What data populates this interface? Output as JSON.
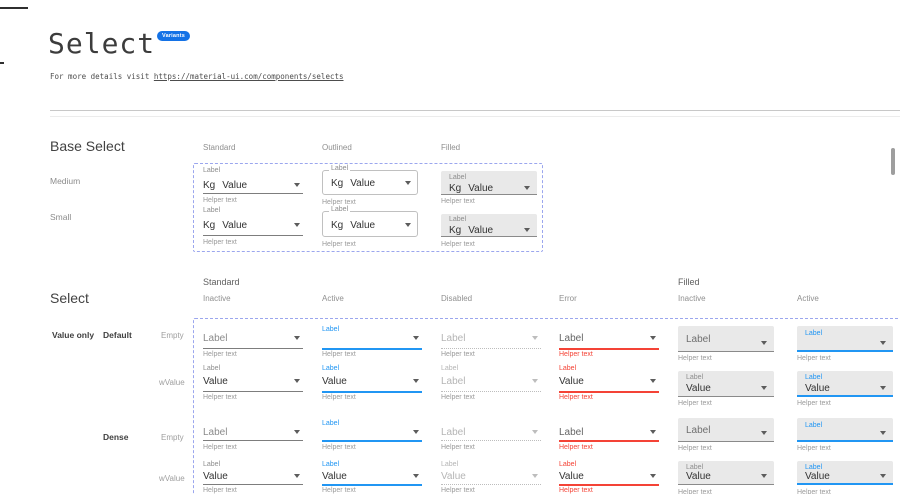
{
  "header": {
    "title": "Select",
    "badge": "Variants",
    "subtitle_prefix": "For more details visit ",
    "subtitle_link": "https://material-ui.com/components/selects"
  },
  "colors": {
    "accent_blue": "#2196F3",
    "error_red": "#F44336",
    "badge_blue": "#1472E6",
    "filled_background": "#E9E9E9",
    "dashed_frame": "#9BA6EE"
  },
  "icons": {
    "select_arrow": "caret-down-icon"
  },
  "base_select": {
    "heading": "Base Select",
    "column_headers": [
      "Standard",
      "Outlined",
      "Filled"
    ],
    "row_labels": [
      "Medium",
      "Small"
    ],
    "field": {
      "label": "Label",
      "adornment": "Kg",
      "value": "Value",
      "helper": "Helper text"
    },
    "cells": [
      {
        "col": 0,
        "row": 0,
        "variant": "standard"
      },
      {
        "col": 1,
        "row": 0,
        "variant": "outlined"
      },
      {
        "col": 2,
        "row": 0,
        "variant": "filled"
      },
      {
        "col": 0,
        "row": 1,
        "variant": "standard"
      },
      {
        "col": 1,
        "row": 1,
        "variant": "outlined"
      },
      {
        "col": 2,
        "row": 1,
        "variant": "filled"
      }
    ]
  },
  "select_section": {
    "heading": "Select",
    "group_headers": [
      "Standard",
      "Filled"
    ],
    "column_headers": [
      "Inactive",
      "Active",
      "Disabled",
      "Error",
      "Inactive",
      "Active"
    ],
    "row_labels": {
      "value_only": "Value only",
      "default_size": "Default",
      "dense_size": "Dense",
      "empty": "Empty",
      "with_value": "wValue"
    },
    "field": {
      "label": "Label",
      "helper": "Helper text"
    },
    "cells": [
      {
        "col": 0,
        "row": 0,
        "variant": "standard",
        "state": "inactive",
        "kind": "empty"
      },
      {
        "col": 0,
        "row": 1,
        "variant": "standard",
        "state": "inactive",
        "kind": "value",
        "value": "Value"
      },
      {
        "col": 0,
        "row": 2,
        "variant": "standard",
        "state": "inactive",
        "kind": "empty"
      },
      {
        "col": 0,
        "row": 3,
        "variant": "standard",
        "state": "inactive",
        "kind": "value",
        "value": "Value"
      },
      {
        "col": 1,
        "row": 0,
        "variant": "standard",
        "state": "active",
        "kind": "empty"
      },
      {
        "col": 1,
        "row": 1,
        "variant": "standard",
        "state": "active",
        "kind": "value",
        "value": "Value"
      },
      {
        "col": 1,
        "row": 2,
        "variant": "standard",
        "state": "active",
        "kind": "empty"
      },
      {
        "col": 1,
        "row": 3,
        "variant": "standard",
        "state": "active",
        "kind": "value",
        "value": "Value"
      },
      {
        "col": 2,
        "row": 0,
        "variant": "standard",
        "state": "disabled",
        "kind": "empty"
      },
      {
        "col": 2,
        "row": 1,
        "variant": "standard",
        "state": "disabled",
        "kind": "value",
        "value": "Label"
      },
      {
        "col": 2,
        "row": 2,
        "variant": "standard",
        "state": "disabled",
        "kind": "empty"
      },
      {
        "col": 2,
        "row": 3,
        "variant": "standard",
        "state": "disabled",
        "kind": "value",
        "value": "Value"
      },
      {
        "col": 3,
        "row": 0,
        "variant": "standard",
        "state": "error",
        "kind": "empty"
      },
      {
        "col": 3,
        "row": 1,
        "variant": "standard",
        "state": "error",
        "kind": "value",
        "value": "Value"
      },
      {
        "col": 3,
        "row": 2,
        "variant": "standard",
        "state": "error",
        "kind": "empty"
      },
      {
        "col": 3,
        "row": 3,
        "variant": "standard",
        "state": "error",
        "kind": "value",
        "value": "Value"
      },
      {
        "col": 4,
        "row": 0,
        "variant": "filled",
        "state": "inactive",
        "kind": "empty"
      },
      {
        "col": 4,
        "row": 1,
        "variant": "filled",
        "state": "inactive",
        "kind": "value",
        "value": "Value"
      },
      {
        "col": 4,
        "row": 2,
        "variant": "filled",
        "state": "inactive",
        "kind": "empty"
      },
      {
        "col": 4,
        "row": 3,
        "variant": "filled",
        "state": "inactive",
        "kind": "value",
        "value": "Value"
      },
      {
        "col": 5,
        "row": 0,
        "variant": "filled",
        "state": "active",
        "kind": "empty"
      },
      {
        "col": 5,
        "row": 1,
        "variant": "filled",
        "state": "active",
        "kind": "value",
        "value": "Value"
      },
      {
        "col": 5,
        "row": 2,
        "variant": "filled",
        "state": "active",
        "kind": "empty"
      },
      {
        "col": 5,
        "row": 3,
        "variant": "filled",
        "state": "active",
        "kind": "value",
        "value": "Value"
      }
    ]
  }
}
